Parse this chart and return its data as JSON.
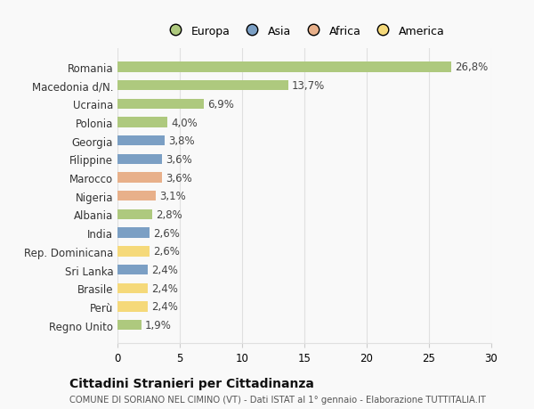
{
  "countries": [
    "Romania",
    "Macedonia d/N.",
    "Ucraina",
    "Polonia",
    "Georgia",
    "Filippine",
    "Marocco",
    "Nigeria",
    "Albania",
    "India",
    "Rep. Dominicana",
    "Sri Lanka",
    "Brasile",
    "Perù",
    "Regno Unito"
  ],
  "values": [
    26.8,
    13.7,
    6.9,
    4.0,
    3.8,
    3.6,
    3.6,
    3.1,
    2.8,
    2.6,
    2.6,
    2.4,
    2.4,
    2.4,
    1.9
  ],
  "labels": [
    "26,8%",
    "13,7%",
    "6,9%",
    "4,0%",
    "3,8%",
    "3,6%",
    "3,6%",
    "3,1%",
    "2,8%",
    "2,6%",
    "2,6%",
    "2,4%",
    "2,4%",
    "2,4%",
    "1,9%"
  ],
  "continents": [
    "Europa",
    "Europa",
    "Europa",
    "Europa",
    "Asia",
    "Asia",
    "Africa",
    "Africa",
    "Europa",
    "Asia",
    "America",
    "Asia",
    "America",
    "America",
    "Europa"
  ],
  "colors": {
    "Europa": "#aec97e",
    "Asia": "#7b9fc4",
    "Africa": "#e8b08a",
    "America": "#f5d97a"
  },
  "title": "Cittadini Stranieri per Cittadinanza",
  "subtitle": "COMUNE DI SORIANO NEL CIMINO (VT) - Dati ISTAT al 1° gennaio - Elaborazione TUTTITALIA.IT",
  "xlim": [
    0,
    30
  ],
  "xticks": [
    0,
    5,
    10,
    15,
    20,
    25,
    30
  ],
  "bg_color": "#f9f9f9",
  "grid_color": "#e0e0e0"
}
